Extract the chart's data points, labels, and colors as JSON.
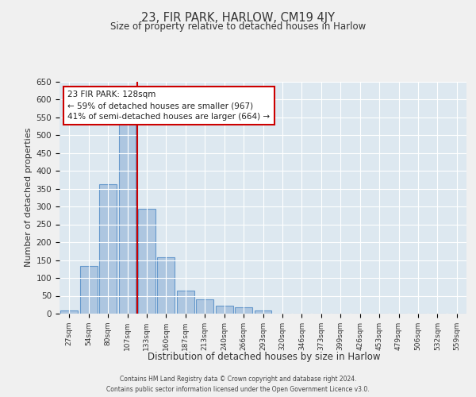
{
  "title": "23, FIR PARK, HARLOW, CM19 4JY",
  "subtitle": "Size of property relative to detached houses in Harlow",
  "xlabel": "Distribution of detached houses by size in Harlow",
  "ylabel": "Number of detached properties",
  "bar_labels": [
    "27sqm",
    "54sqm",
    "80sqm",
    "107sqm",
    "133sqm",
    "160sqm",
    "187sqm",
    "213sqm",
    "240sqm",
    "266sqm",
    "293sqm",
    "320sqm",
    "346sqm",
    "373sqm",
    "399sqm",
    "426sqm",
    "453sqm",
    "479sqm",
    "506sqm",
    "532sqm",
    "559sqm"
  ],
  "bar_heights": [
    10,
    133,
    363,
    535,
    293,
    157,
    65,
    40,
    22,
    17,
    8,
    1,
    0,
    0,
    0,
    1,
    0,
    0,
    0,
    1,
    0
  ],
  "bar_color": "#adc6e0",
  "bar_edge_color": "#6699cc",
  "background_color": "#dde8f0",
  "grid_color": "#ffffff",
  "vline_color": "#cc0000",
  "annotation_title": "23 FIR PARK: 128sqm",
  "annotation_line1": "← 59% of detached houses are smaller (967)",
  "annotation_line2": "41% of semi-detached houses are larger (664) →",
  "ylim": [
    0,
    650
  ],
  "yticks": [
    0,
    50,
    100,
    150,
    200,
    250,
    300,
    350,
    400,
    450,
    500,
    550,
    600,
    650
  ],
  "footer_line1": "Contains HM Land Registry data © Crown copyright and database right 2024.",
  "footer_line2": "Contains public sector information licensed under the Open Government Licence v3.0.",
  "fig_bg": "#f0f0f0"
}
